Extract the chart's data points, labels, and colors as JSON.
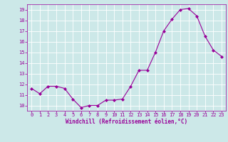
{
  "x": [
    0,
    1,
    2,
    3,
    4,
    5,
    6,
    7,
    8,
    9,
    10,
    11,
    12,
    13,
    14,
    15,
    16,
    17,
    18,
    19,
    20,
    21,
    22,
    23
  ],
  "y": [
    11.6,
    11.1,
    11.8,
    11.8,
    11.6,
    10.6,
    9.8,
    10.0,
    10.0,
    10.5,
    10.5,
    10.6,
    11.8,
    13.3,
    13.3,
    15.0,
    17.0,
    18.1,
    19.0,
    19.1,
    18.4,
    16.5,
    15.2,
    14.6
  ],
  "line_color": "#990099",
  "marker": "D",
  "marker_size": 2,
  "bg_color": "#cce8e8",
  "grid_color": "#ffffff",
  "xlabel": "Windchill (Refroidissement éolien,°C)",
  "xlabel_color": "#990099",
  "tick_color": "#990099",
  "ylim": [
    9.5,
    19.5
  ],
  "xlim": [
    -0.5,
    23.5
  ],
  "yticks": [
    10,
    11,
    12,
    13,
    14,
    15,
    16,
    17,
    18,
    19
  ],
  "xticks": [
    0,
    1,
    2,
    3,
    4,
    5,
    6,
    7,
    8,
    9,
    10,
    11,
    12,
    13,
    14,
    15,
    16,
    17,
    18,
    19,
    20,
    21,
    22,
    23
  ],
  "tick_fontsize": 5.0,
  "xlabel_fontsize": 5.5,
  "line_width": 0.8
}
